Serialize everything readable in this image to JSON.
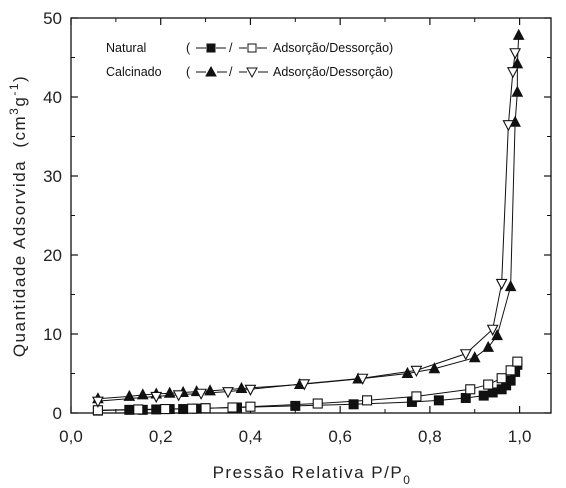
{
  "chart_data": {
    "type": "scatter",
    "xlabel": "Pressão Relativa P/P",
    "xlabel_sub": "0",
    "ylabel": "Quantidade Adsorvida",
    "ylabel_unit_pre": "(cm",
    "ylabel_unit_sup1": "3",
    "ylabel_unit_mid": "g",
    "ylabel_unit_sup2": "-1",
    "ylabel_unit_post": ")",
    "xlim": [
      0.0,
      1.07
    ],
    "ylim": [
      0,
      50
    ],
    "x_ticks": [
      "0,0",
      "0,2",
      "0,4",
      "0,6",
      "0,8",
      "1,0"
    ],
    "y_ticks": [
      "0",
      "10",
      "20",
      "30",
      "40",
      "50"
    ],
    "x_tick_values": [
      0.0,
      0.2,
      0.4,
      0.6,
      0.8,
      1.0
    ],
    "y_tick_values": [
      0,
      10,
      20,
      30,
      40,
      50
    ],
    "grid": false,
    "legend_position": "top-left",
    "legend": [
      {
        "name": "Natural",
        "paren_open": "(",
        "sep": "/",
        "suffix": "Adsorção/Dessorção)",
        "markers": [
          "filled-square",
          "open-square"
        ]
      },
      {
        "name": "Calcinado",
        "paren_open": "(",
        "sep": "/",
        "suffix": "Adsorção/Dessorção)",
        "markers": [
          "filled-triangle-up",
          "open-triangle-down"
        ]
      }
    ],
    "series": [
      {
        "marker": "filled-square",
        "color": "#111111",
        "x": [
          0.06,
          0.13,
          0.16,
          0.19,
          0.22,
          0.25,
          0.28,
          0.3,
          0.37,
          0.5,
          0.63,
          0.76,
          0.82,
          0.88,
          0.92,
          0.94,
          0.96,
          0.97,
          0.98,
          0.99,
          0.995
        ],
        "y": [
          0.3,
          0.4,
          0.4,
          0.45,
          0.5,
          0.5,
          0.55,
          0.6,
          0.7,
          0.9,
          1.1,
          1.4,
          1.6,
          1.9,
          2.2,
          2.6,
          3.0,
          3.5,
          4.1,
          5.2,
          6.1
        ]
      },
      {
        "marker": "open-square",
        "color": "#111111",
        "x": [
          0.06,
          0.15,
          0.21,
          0.27,
          0.3,
          0.36,
          0.4,
          0.55,
          0.66,
          0.77,
          0.89,
          0.93,
          0.96,
          0.98,
          0.995
        ],
        "y": [
          0.35,
          0.45,
          0.5,
          0.55,
          0.6,
          0.7,
          0.8,
          1.2,
          1.6,
          2.1,
          3.0,
          3.6,
          4.4,
          5.4,
          6.5
        ]
      },
      {
        "marker": "filled-triangle-up",
        "color": "#111111",
        "x": [
          0.06,
          0.13,
          0.16,
          0.19,
          0.22,
          0.25,
          0.28,
          0.31,
          0.38,
          0.51,
          0.64,
          0.75,
          0.81,
          0.9,
          0.93,
          0.95,
          0.98,
          0.99,
          0.995,
          0.995,
          0.998
        ],
        "y": [
          1.8,
          2.1,
          2.3,
          2.4,
          2.5,
          2.6,
          2.7,
          2.8,
          3.1,
          3.6,
          4.3,
          5.0,
          5.6,
          7.0,
          8.3,
          9.8,
          16.0,
          36.8,
          40.6,
          44.2,
          47.8
        ]
      },
      {
        "marker": "open-triangle-down",
        "color": "#111111",
        "x": [
          0.06,
          0.19,
          0.24,
          0.29,
          0.35,
          0.4,
          0.52,
          0.65,
          0.77,
          0.88,
          0.94,
          0.96,
          0.975,
          0.985,
          0.99
        ],
        "y": [
          1.5,
          2.1,
          2.3,
          2.5,
          2.7,
          3.0,
          3.7,
          4.4,
          5.4,
          7.5,
          10.6,
          16.4,
          36.5,
          43.2,
          45.6
        ]
      }
    ]
  }
}
